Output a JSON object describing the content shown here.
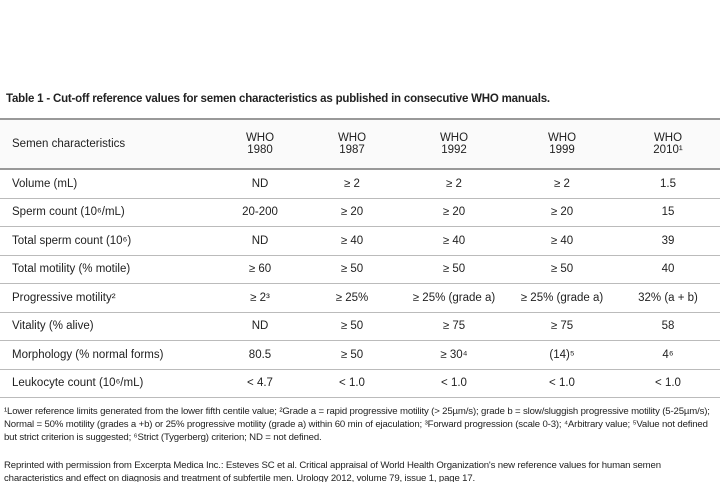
{
  "title": "Table 1 - Cut-off reference values for semen characteristics as published in consecutive WHO manuals.",
  "table": {
    "header": [
      "Semen characteristics",
      "WHO\n1980",
      "WHO\n1987",
      "WHO\n1992",
      "WHO\n1999",
      "WHO\n2010¹"
    ],
    "rows": [
      [
        "Volume (mL)",
        "ND",
        "≥ 2",
        "≥ 2",
        "≥ 2",
        "1.5"
      ],
      [
        "Sperm count (10⁶/mL)",
        "20-200",
        "≥ 20",
        "≥ 20",
        "≥ 20",
        "15"
      ],
      [
        "Total sperm count (10⁶)",
        "ND",
        "≥ 40",
        "≥ 40",
        "≥ 40",
        "39"
      ],
      [
        "Total motility (% motile)",
        "≥ 60",
        "≥ 50",
        "≥ 50",
        "≥ 50",
        "40"
      ],
      [
        "Progressive motility²",
        "≥ 2³",
        "≥ 25%",
        "≥ 25% (grade a)",
        "≥ 25% (grade a)",
        "32% (a + b)"
      ],
      [
        "Vitality (% alive)",
        "ND",
        "≥ 50",
        "≥ 75",
        "≥ 75",
        "58"
      ],
      [
        "Morphology (% normal forms)",
        "80.5",
        "≥ 50",
        "≥ 30⁴",
        "(14)⁵",
        "4⁶"
      ],
      [
        "Leukocyte count (10⁶/mL)",
        "< 4.7",
        "< 1.0",
        "< 1.0",
        "< 1.0",
        "< 1.0"
      ]
    ]
  },
  "footnotes": "¹Lower reference limits generated from the lower fifth centile value; ²Grade a = rapid progressive motility (> 25µm/s); grade b = slow/sluggish progressive motility (5-25µm/s); Normal = 50% motility (grades a +b) or 25% progressive motility (grade a) within 60 min of ejaculation; ³Forward progression (scale 0-3); ⁴Arbitrary value; ⁵Value not defined but strict criterion is suggested; ⁶Strict (Tygerberg) criterion; ND = not defined.",
  "source": "Reprinted with permission from Excerpta Medica Inc.: Esteves SC et al. Critical appraisal of World Health Organization's new reference values for human semen characteristics and effect on diagnosis and treatment of subfertile men. Urology 2012, volume 79, issue 1, page 17."
}
